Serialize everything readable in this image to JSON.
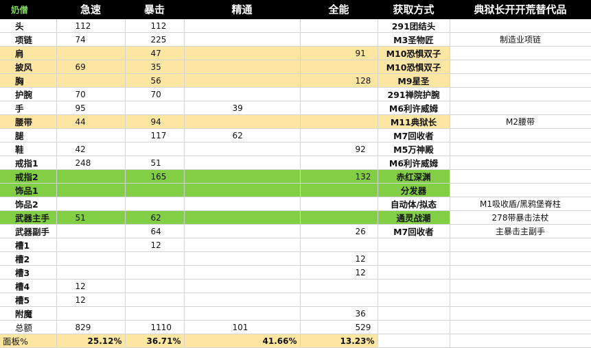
{
  "headers": [
    "奶僧",
    "急速",
    "暴击",
    "精通",
    "全能",
    "获取方式",
    "典狱长开开荒替代品"
  ],
  "rows": [
    {
      "slot": "头",
      "haste": "112",
      "crit": "112",
      "mastery": "",
      "vers": "",
      "source": "291团结头",
      "alt": "",
      "hl": ""
    },
    {
      "slot": "项链",
      "haste": "74",
      "crit": "225",
      "mastery": "",
      "vers": "",
      "source": "M3圣物匠",
      "alt": "制造业项链",
      "hl": ""
    },
    {
      "slot": "肩",
      "haste": "",
      "crit": "47",
      "mastery": "",
      "vers": "91",
      "source": "M10恐惧双子",
      "alt": "",
      "hl": "yellow"
    },
    {
      "slot": "披风",
      "haste": "69",
      "crit": "35",
      "mastery": "",
      "vers": "",
      "source": "M10恐惧双子",
      "alt": "",
      "hl": "yellow"
    },
    {
      "slot": "胸",
      "haste": "",
      "crit": "56",
      "mastery": "",
      "vers": "128",
      "source": "M9星圣",
      "alt": "",
      "hl": "yellow"
    },
    {
      "slot": "护腕",
      "haste": "70",
      "crit": "70",
      "mastery": "",
      "vers": "",
      "source": "291禅院护腕",
      "alt": "",
      "hl": ""
    },
    {
      "slot": "手",
      "haste": "95",
      "crit": "",
      "mastery": "39",
      "vers": "",
      "source": "M6利许威姆",
      "alt": "",
      "hl": ""
    },
    {
      "slot": "腰带",
      "haste": "44",
      "crit": "94",
      "mastery": "",
      "vers": "",
      "source": "M11典狱长",
      "alt": "M2腰带",
      "hl": "yellow"
    },
    {
      "slot": "腿",
      "haste": "",
      "crit": "117",
      "mastery": "62",
      "vers": "",
      "source": "M7回收者",
      "alt": "",
      "hl": ""
    },
    {
      "slot": "鞋",
      "haste": "42",
      "crit": "",
      "mastery": "",
      "vers": "92",
      "source": "M5万神殿",
      "alt": "",
      "hl": ""
    },
    {
      "slot": "戒指1",
      "haste": "248",
      "crit": "51",
      "mastery": "",
      "vers": "",
      "source": "M6利许威姆",
      "alt": "",
      "hl": ""
    },
    {
      "slot": "戒指2",
      "haste": "",
      "crit": "165",
      "mastery": "",
      "vers": "132",
      "source": "赤红深渊",
      "alt": "",
      "hl": "green"
    },
    {
      "slot": "饰品1",
      "haste": "",
      "crit": "",
      "mastery": "",
      "vers": "",
      "source": "分发器",
      "alt": "",
      "hl": "green"
    },
    {
      "slot": "饰品2",
      "haste": "",
      "crit": "",
      "mastery": "",
      "vers": "",
      "source": "自动体/拟态",
      "alt": "M1吸收盾/黑鸦堡脊柱",
      "hl": ""
    },
    {
      "slot": "武器主手",
      "haste": "51",
      "crit": "62",
      "mastery": "",
      "vers": "",
      "source": "通灵战潮",
      "alt": "278带暴击法杖",
      "hl": "green"
    },
    {
      "slot": "武器副手",
      "haste": "",
      "crit": "64",
      "mastery": "",
      "vers": "26",
      "source": "M7回收者",
      "alt": "主暴击主副手",
      "hl": ""
    },
    {
      "slot": "槽1",
      "haste": "",
      "crit": "12",
      "mastery": "",
      "vers": "",
      "source": "",
      "alt": "",
      "hl": ""
    },
    {
      "slot": "槽2",
      "haste": "",
      "crit": "",
      "mastery": "",
      "vers": "12",
      "source": "",
      "alt": "",
      "hl": ""
    },
    {
      "slot": "槽3",
      "haste": "",
      "crit": "",
      "mastery": "",
      "vers": "12",
      "source": "",
      "alt": "",
      "hl": ""
    },
    {
      "slot": "槽4",
      "haste": "12",
      "crit": "",
      "mastery": "",
      "vers": "",
      "source": "",
      "alt": "",
      "hl": ""
    },
    {
      "slot": "槽5",
      "haste": "12",
      "crit": "",
      "mastery": "",
      "vers": "",
      "source": "",
      "alt": "",
      "hl": ""
    },
    {
      "slot": "附魔",
      "haste": "",
      "crit": "",
      "mastery": "",
      "vers": "36",
      "source": "",
      "alt": "",
      "hl": ""
    }
  ],
  "total": {
    "label": "总额",
    "haste": "829",
    "crit": "1110",
    "mastery": "101",
    "vers": "529"
  },
  "panel": {
    "label": "面板%",
    "haste": "25.12%",
    "crit": "36.71%",
    "mastery": "41.66%",
    "vers": "13.23%"
  }
}
